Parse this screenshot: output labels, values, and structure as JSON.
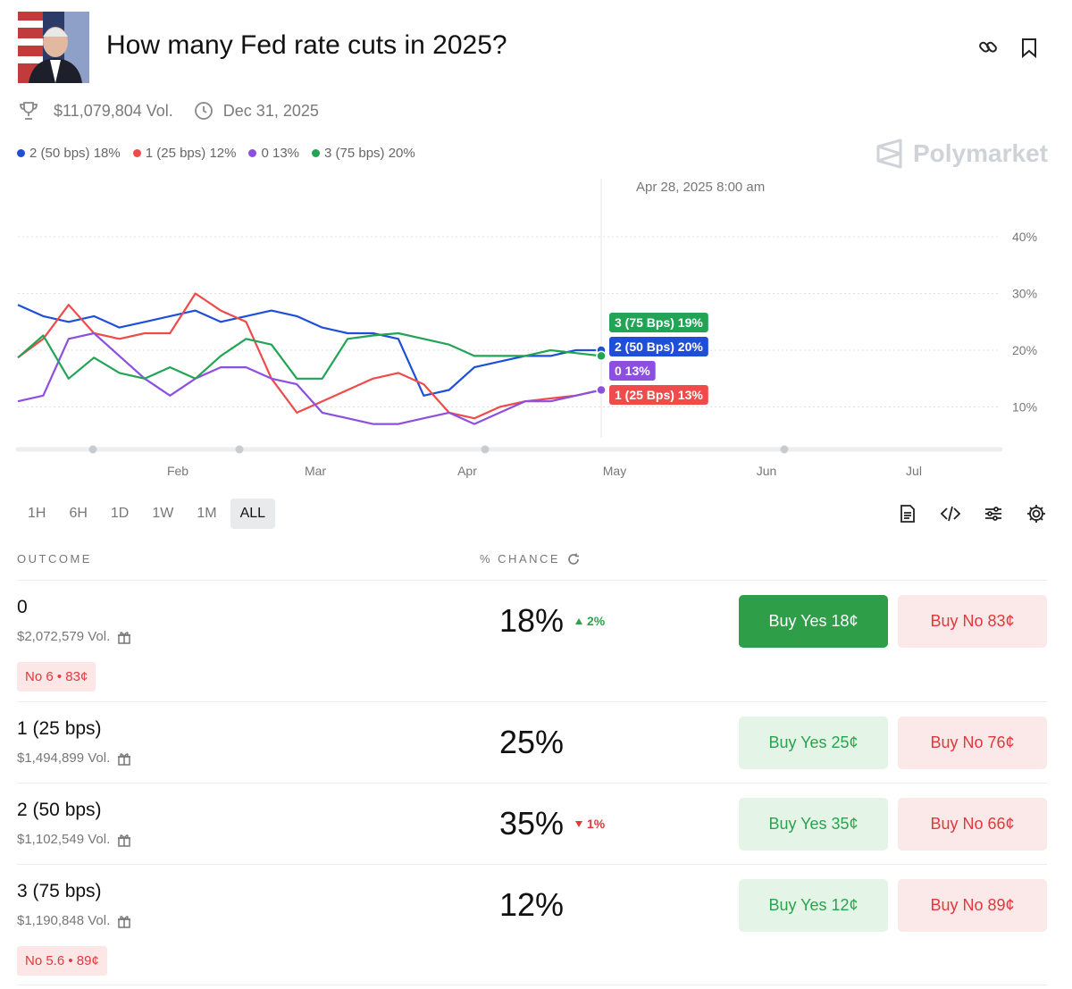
{
  "header": {
    "title": "How many Fed rate cuts in 2025?",
    "volume": "$11,079,804 Vol.",
    "end_date": "Dec 31, 2025",
    "brand": "Polymarket"
  },
  "chart_data": {
    "type": "line",
    "hover_label": "Apr 28, 2025 8:00 am",
    "x_labels": [
      "Feb",
      "Mar",
      "Apr",
      "May",
      "Jun",
      "Jul"
    ],
    "ylim": [
      3,
      50
    ],
    "yticks": [
      {
        "value": 10,
        "label": "10%"
      },
      {
        "value": 20,
        "label": "20%"
      },
      {
        "value": 30,
        "label": "30%"
      },
      {
        "value": 40,
        "label": "40%"
      }
    ],
    "grid": true,
    "legend": [
      "2 (50 bps) 18%",
      "1 (25 bps) 12%",
      "0 13%",
      "3 (75 bps) 20%"
    ],
    "series": [
      {
        "name": "2 (50 Bps)",
        "color": "#1f4fd8",
        "end_label": "2 (50 Bps) 20%",
        "values": [
          28,
          26,
          25,
          26,
          24,
          25,
          26,
          27,
          25,
          26,
          27,
          26,
          24,
          23,
          23,
          22,
          12,
          13,
          17,
          18,
          19,
          19,
          20,
          20
        ]
      },
      {
        "name": "1 (25 Bps)",
        "color": "#ef4b4b",
        "end_label": "1 (25 Bps) 13%",
        "values": [
          18.7,
          22,
          28,
          23,
          22,
          23,
          23,
          30,
          27,
          25,
          15,
          9,
          11,
          13,
          15,
          16,
          14,
          9,
          8,
          10,
          11,
          11.5,
          12,
          13
        ]
      },
      {
        "name": "0",
        "color": "#8c4fe0",
        "end_label": "0 13%",
        "values": [
          11,
          12,
          22,
          23,
          19,
          15,
          12,
          15,
          17,
          17,
          15,
          14,
          9,
          8,
          7,
          7,
          8,
          9,
          7,
          9,
          11,
          11,
          12,
          13
        ]
      },
      {
        "name": "3 (75 Bps)",
        "color": "#22a455",
        "end_label": "3 (75 Bps) 19%",
        "values": [
          18.7,
          22.6,
          15,
          18.7,
          16,
          15,
          17,
          15,
          19,
          22,
          21,
          15,
          15,
          22,
          22.6,
          23,
          22,
          21,
          19,
          19,
          19,
          20,
          19.5,
          19
        ]
      }
    ]
  },
  "timeframes": [
    "1H",
    "6H",
    "1D",
    "1W",
    "1M",
    "ALL"
  ],
  "active_timeframe": 5,
  "table": {
    "outcome_header": "OUTCOME",
    "chance_header": "% CHANCE",
    "rows": [
      {
        "name": "0",
        "volume": "$2,072,579 Vol.",
        "chance": "18%",
        "change": {
          "text": "2%",
          "direction": "up"
        },
        "buy_yes": "Buy Yes 18¢",
        "buy_no": "Buy No 83¢",
        "active": true,
        "tag": "No 6 • 83¢"
      },
      {
        "name": "1 (25 bps)",
        "volume": "$1,494,899 Vol.",
        "chance": "25%",
        "buy_yes": "Buy Yes 25¢",
        "buy_no": "Buy No 76¢"
      },
      {
        "name": "2 (50 bps)",
        "volume": "$1,102,549 Vol.",
        "chance": "35%",
        "change": {
          "text": "1%",
          "direction": "down"
        },
        "buy_yes": "Buy Yes 35¢",
        "buy_no": "Buy No 66¢"
      },
      {
        "name": "3 (75 bps)",
        "volume": "$1,190,848 Vol.",
        "chance": "12%",
        "buy_yes": "Buy Yes 12¢",
        "buy_no": "Buy No 89¢",
        "tag": "No 5.6 • 89¢"
      }
    ]
  }
}
